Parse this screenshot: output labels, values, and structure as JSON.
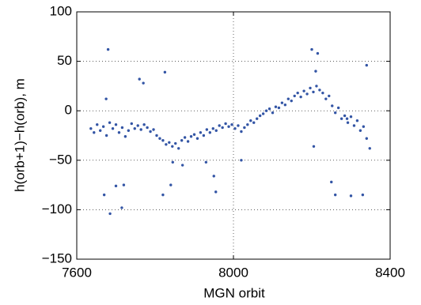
{
  "chart_data": {
    "type": "scatter",
    "xlabel": "MGN orbit",
    "ylabel": "h(orb+1)−h(orb), m",
    "color": "#3355a5",
    "grid": true,
    "xlim": [
      7600,
      8400
    ],
    "xticks": [
      7600,
      8000,
      8400
    ],
    "ylim": [
      -150,
      100
    ],
    "yticks": [
      100,
      50,
      0,
      {
        "value": -50,
        "label": "−50"
      },
      {
        "value": -100,
        "label": "−100"
      },
      {
        "value": -150,
        "label": "−150"
      }
    ],
    "x": [
      7636,
      7644,
      7652,
      7660,
      7668,
      7676,
      7684,
      7692,
      7700,
      7708,
      7716,
      7724,
      7732,
      7740,
      7748,
      7756,
      7764,
      7772,
      7780,
      7788,
      7796,
      7804,
      7812,
      7820,
      7828,
      7836,
      7844,
      7852,
      7860,
      7868,
      7876,
      7884,
      7892,
      7900,
      7908,
      7916,
      7924,
      7932,
      7940,
      7948,
      7956,
      7964,
      7972,
      7980,
      7988,
      7996,
      8004,
      8012,
      8020,
      8028,
      8036,
      8044,
      8052,
      8060,
      8068,
      8076,
      8084,
      8092,
      8100,
      8108,
      8116,
      8124,
      8132,
      8140,
      8148,
      8156,
      8164,
      8172,
      8180,
      8188,
      8196,
      8204,
      8212,
      8220,
      8228,
      8236,
      8244,
      8252,
      8260,
      8268,
      8276,
      8284,
      8292,
      8300,
      8308,
      8316,
      8324,
      8332,
      8340,
      8348,
      7680,
      7675,
      7670,
      7685,
      7700,
      7715,
      7720,
      7760,
      7770,
      7825,
      7820,
      7840,
      7845,
      7870,
      7930,
      7950,
      7955,
      8020,
      8200,
      8215,
      8210,
      8205,
      8250,
      8260,
      8300,
      8330,
      8340,
      8290
    ],
    "values": [
      -18,
      -22,
      -14,
      -20,
      -16,
      -25,
      -12,
      -18,
      -14,
      -22,
      -17,
      -26,
      -20,
      -13,
      -18,
      -15,
      -19,
      -14,
      -17,
      -21,
      -19,
      -25,
      -28,
      -30,
      -34,
      -32,
      -36,
      -33,
      -38,
      -30,
      -27,
      -31,
      -26,
      -24,
      -28,
      -22,
      -25,
      -19,
      -22,
      -18,
      -20,
      -15,
      -17,
      -13,
      -16,
      -14,
      -18,
      -15,
      -21,
      -17,
      -14,
      -10,
      -12,
      -8,
      -5,
      -3,
      0,
      2,
      -2,
      4,
      3,
      8,
      6,
      12,
      10,
      15,
      18,
      14,
      20,
      17,
      23,
      19,
      25,
      21,
      18,
      12,
      15,
      5,
      -2,
      3,
      -8,
      -5,
      -12,
      -6,
      -15,
      -10,
      -20,
      -16,
      -28,
      -38,
      62,
      12,
      -85,
      -104,
      -76,
      -98,
      -75,
      32,
      28,
      39,
      -85,
      -75,
      -52,
      -55,
      -52,
      -66,
      -82,
      -50,
      62,
      58,
      40,
      -36,
      -72,
      -85,
      -86,
      -85,
      46,
      -8
    ]
  }
}
